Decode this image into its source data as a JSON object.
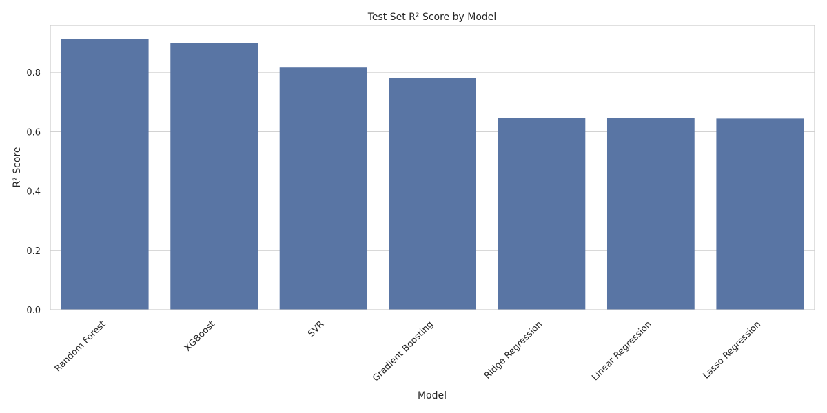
{
  "chart_data": {
    "type": "bar",
    "title": "Test Set R² Score by Model",
    "xlabel": "Model",
    "ylabel": "R² Score",
    "categories": [
      "Random Forest",
      "XGBoost",
      "SVR",
      "Gradient Boosting",
      "Ridge Regression",
      "Linear Regression",
      "Lasso Regression"
    ],
    "values": [
      0.912,
      0.898,
      0.816,
      0.781,
      0.646,
      0.646,
      0.644
    ],
    "ylim": [
      0,
      0.958
    ],
    "yticks": [
      0.0,
      0.2,
      0.4,
      0.6,
      0.8
    ],
    "ytick_labels": [
      "0.0",
      "0.2",
      "0.4",
      "0.6",
      "0.8"
    ],
    "grid": "horizontal",
    "bar_color": "#5975a4",
    "grid_color": "#cccccc"
  }
}
